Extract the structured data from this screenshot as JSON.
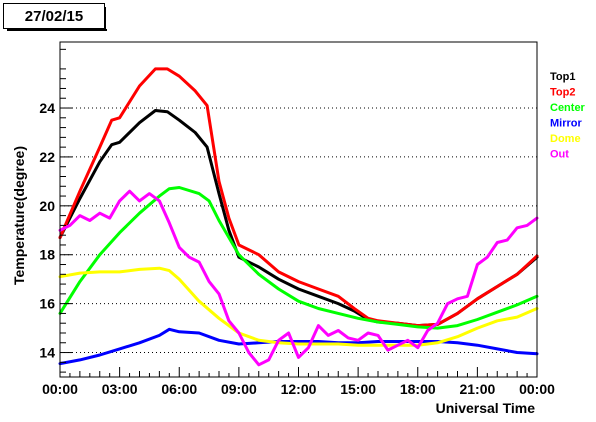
{
  "chart_data": {
    "type": "line",
    "title": "27/02/15",
    "xlabel": "Universal Time",
    "ylabel": "Temperature(degree)",
    "xlim": [
      0,
      24
    ],
    "ylim": [
      13,
      26.7
    ],
    "x_tick_labels": [
      "00:00",
      "03:00",
      "06:00",
      "09:00",
      "12:00",
      "15:00",
      "18:00",
      "21:00",
      "00:00"
    ],
    "x_ticks": [
      0,
      3,
      6,
      9,
      12,
      15,
      18,
      21,
      24
    ],
    "y_ticks": [
      14,
      16,
      18,
      20,
      22,
      24
    ],
    "y_tick_labels": [
      "14",
      "16",
      "18",
      "20",
      "22",
      "24"
    ],
    "grid": "horizontal dotted",
    "legend_position": "right",
    "series": [
      {
        "name": "Top1",
        "color": "#000000",
        "x": [
          0,
          1,
          2,
          2.6,
          3,
          4,
          4.8,
          5.4,
          6,
          6.8,
          7.4,
          8,
          8.5,
          9,
          10,
          11,
          12,
          13,
          14,
          14.8,
          15.5,
          16,
          17,
          18,
          19,
          20,
          21,
          22,
          23,
          24
        ],
        "values": [
          18.7,
          20.3,
          21.8,
          22.5,
          22.6,
          23.4,
          23.9,
          23.85,
          23.5,
          23.0,
          22.4,
          20.5,
          19.0,
          17.9,
          17.5,
          17.0,
          16.6,
          16.3,
          16.0,
          15.7,
          15.35,
          15.25,
          15.2,
          15.1,
          15.15,
          15.6,
          16.2,
          16.7,
          17.2,
          17.9
        ]
      },
      {
        "name": "Top2",
        "color": "#ff0000",
        "x": [
          0,
          1,
          2,
          2.6,
          3,
          4,
          4.8,
          5.4,
          6,
          6.8,
          7.4,
          8,
          8.5,
          9,
          10,
          11,
          12,
          13,
          14,
          14.8,
          15.5,
          16,
          17,
          18,
          19,
          20,
          21,
          22,
          23,
          24
        ],
        "values": [
          18.7,
          20.6,
          22.4,
          23.5,
          23.6,
          24.9,
          25.6,
          25.6,
          25.3,
          24.7,
          24.1,
          21.0,
          19.5,
          18.4,
          18.0,
          17.3,
          16.9,
          16.6,
          16.3,
          15.8,
          15.4,
          15.3,
          15.2,
          15.1,
          15.15,
          15.6,
          16.2,
          16.7,
          17.2,
          17.95
        ]
      },
      {
        "name": "Center",
        "color": "#00ff00",
        "x": [
          0,
          1,
          2,
          3,
          4,
          5,
          5.5,
          6,
          7,
          7.5,
          8,
          9,
          10,
          11,
          12,
          13,
          14,
          15,
          16,
          17,
          18,
          19,
          20,
          21,
          22,
          23,
          24
        ],
        "values": [
          15.6,
          16.9,
          18.0,
          18.9,
          19.7,
          20.4,
          20.7,
          20.75,
          20.5,
          20.2,
          19.4,
          18.0,
          17.2,
          16.6,
          16.1,
          15.8,
          15.6,
          15.4,
          15.25,
          15.15,
          15.05,
          15.0,
          15.1,
          15.35,
          15.65,
          15.95,
          16.3
        ]
      },
      {
        "name": "Mirror",
        "color": "#0000ff",
        "x": [
          0,
          1,
          2,
          3,
          4,
          5,
          5.5,
          6,
          7,
          8,
          9,
          10,
          11,
          12,
          13,
          14,
          15,
          16,
          17,
          18,
          19,
          20,
          21,
          22,
          23,
          24
        ],
        "values": [
          13.55,
          13.7,
          13.9,
          14.15,
          14.4,
          14.7,
          14.95,
          14.85,
          14.8,
          14.5,
          14.35,
          14.4,
          14.45,
          14.45,
          14.45,
          14.4,
          14.4,
          14.45,
          14.45,
          14.45,
          14.45,
          14.4,
          14.3,
          14.15,
          14.0,
          13.95
        ]
      },
      {
        "name": "Dome",
        "color": "#ffff00",
        "x": [
          0,
          1,
          2,
          3,
          4,
          5,
          5.5,
          6,
          7,
          8,
          9,
          10,
          11,
          12,
          13,
          14,
          15,
          16,
          17,
          18,
          19,
          20,
          21,
          22,
          23,
          24
        ],
        "values": [
          17.1,
          17.25,
          17.3,
          17.3,
          17.4,
          17.45,
          17.35,
          17.0,
          16.1,
          15.4,
          14.8,
          14.5,
          14.4,
          14.35,
          14.35,
          14.35,
          14.3,
          14.3,
          14.3,
          14.3,
          14.4,
          14.65,
          15.0,
          15.3,
          15.45,
          15.8
        ]
      },
      {
        "name": "Out",
        "color": "#ff00ff",
        "x": [
          0,
          0.5,
          1,
          1.5,
          2,
          2.5,
          3,
          3.5,
          4,
          4.5,
          5,
          5.5,
          6,
          6.5,
          7,
          7.5,
          8,
          8.5,
          9,
          9.5,
          10,
          10.5,
          11,
          11.5,
          12,
          12.5,
          13,
          13.5,
          14,
          14.5,
          15,
          15.5,
          16,
          16.5,
          17,
          17.5,
          18,
          18.5,
          19,
          19.5,
          20,
          20.5,
          21,
          21.5,
          22,
          22.5,
          23,
          23.5,
          24
        ],
        "values": [
          19.0,
          19.2,
          19.6,
          19.4,
          19.7,
          19.5,
          20.2,
          20.6,
          20.2,
          20.5,
          20.2,
          19.3,
          18.3,
          17.9,
          17.7,
          16.9,
          16.4,
          15.3,
          14.8,
          14.0,
          13.5,
          13.7,
          14.5,
          14.8,
          13.8,
          14.2,
          15.1,
          14.7,
          14.9,
          14.6,
          14.5,
          14.8,
          14.7,
          14.1,
          14.3,
          14.5,
          14.2,
          14.9,
          15.2,
          16.0,
          16.2,
          16.3,
          17.6,
          17.9,
          18.5,
          18.6,
          19.1,
          19.2,
          19.5
        ]
      }
    ]
  }
}
